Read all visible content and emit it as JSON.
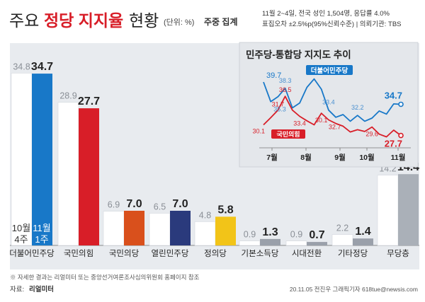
{
  "header": {
    "title_prefix": "주요",
    "title_bold": "정당 지지율",
    "title_suffix": "현황",
    "unit_note": "(단위: %)",
    "aggregation": "주중 집계"
  },
  "survey": {
    "line1": "11월 2~4일, 전국 성인 1,504명, 응답률 4.0%",
    "line2": "표집오차 ±2.5%p(95%신뢰수준) | 의뢰기관: TBS"
  },
  "colors": {
    "prev_bar": "#ffffff",
    "dem_blue": "#1878c8",
    "ppp_red": "#d81e28",
    "ppp_people_orange": "#d9501c",
    "open_dem_navy": "#2a3a7c",
    "justice_yellow": "#f2c418",
    "basic_income": "#9aa0aa",
    "transition": "#9aa0aa",
    "others": "#9aa0aa",
    "none": "#aab0b8",
    "panel_bg": "#e8ebef",
    "inset_bg": "#e4e7eb"
  },
  "chart_data": [
    {
      "type": "bar",
      "title": "",
      "unit": "%",
      "period_labels": {
        "prev": "10월\n4주",
        "curr": "11월\n1주"
      },
      "series": [
        {
          "name": "10월 4주",
          "values": [
            34.8,
            28.9,
            6.9,
            6.5,
            4.8,
            0.9,
            0.9,
            2.2,
            14.2
          ]
        },
        {
          "name": "11월 1주",
          "values": [
            34.7,
            27.7,
            7.0,
            7.0,
            5.8,
            1.3,
            0.7,
            1.4,
            14.4
          ]
        }
      ],
      "categories": [
        "더불어민주당",
        "국민의힘",
        "국민의당",
        "열린민주당",
        "정의당",
        "기본소득당",
        "시대전환",
        "기타정당",
        "무당층"
      ],
      "prev_labels": [
        "34.8",
        "28.9",
        "6.9",
        "6.5",
        "4.8",
        "0.9",
        "0.9",
        "2.2",
        "14.2"
      ],
      "curr_labels": [
        "34.7",
        "27.7",
        "7.0",
        "7.0",
        "5.8",
        "1.3",
        "0.7",
        "1.4",
        "14.4"
      ]
    },
    {
      "type": "line",
      "title": "민주당-통합당 지지도 추이",
      "x_labels": [
        "7월",
        "8월",
        "9월",
        "10월",
        "11월"
      ],
      "series": [
        {
          "name": "더불어민주당",
          "color": "#1878c8",
          "values": [
            39.7,
            35.3,
            36.4,
            38.3,
            33.9,
            35.0,
            38.5,
            40.4,
            38.1,
            33.4,
            31.8,
            32.4,
            30.9,
            32.2,
            30.9,
            31.6,
            33.2,
            32.5,
            34.8,
            34.7
          ]
        },
        {
          "name": "국민의힘",
          "color": "#d81e28",
          "values": [
            30.1,
            31.7,
            33.4,
            36.5,
            33.4,
            32.0,
            31.0,
            30.1,
            32.7,
            31.2,
            30.4,
            29.8,
            28.5,
            29.0,
            28.6,
            29.6,
            28.0,
            27.4,
            28.9,
            27.7
          ]
        }
      ],
      "labeled_points": {
        "dem": [
          "39.7",
          "35.3",
          "38.3",
          "40.4",
          "33.4",
          "32.2",
          "34.7"
        ],
        "ppp": [
          "30.1",
          "31.7",
          "36.5",
          "33.4",
          "30.1",
          "32.7",
          "29.6",
          "27.7"
        ]
      },
      "tags": {
        "dem": "더불어민주당",
        "ppp": "국민의힘"
      }
    }
  ],
  "footer": {
    "note": "※ 자세한 결과는 리얼미터 또는 중앙선거여론조사심의위원회 홈페이지 참조",
    "source_label": "자료:",
    "source_name": "리얼미터",
    "credit": "20.11.05 전진우 그래픽기자  618tue@newsis.com"
  }
}
